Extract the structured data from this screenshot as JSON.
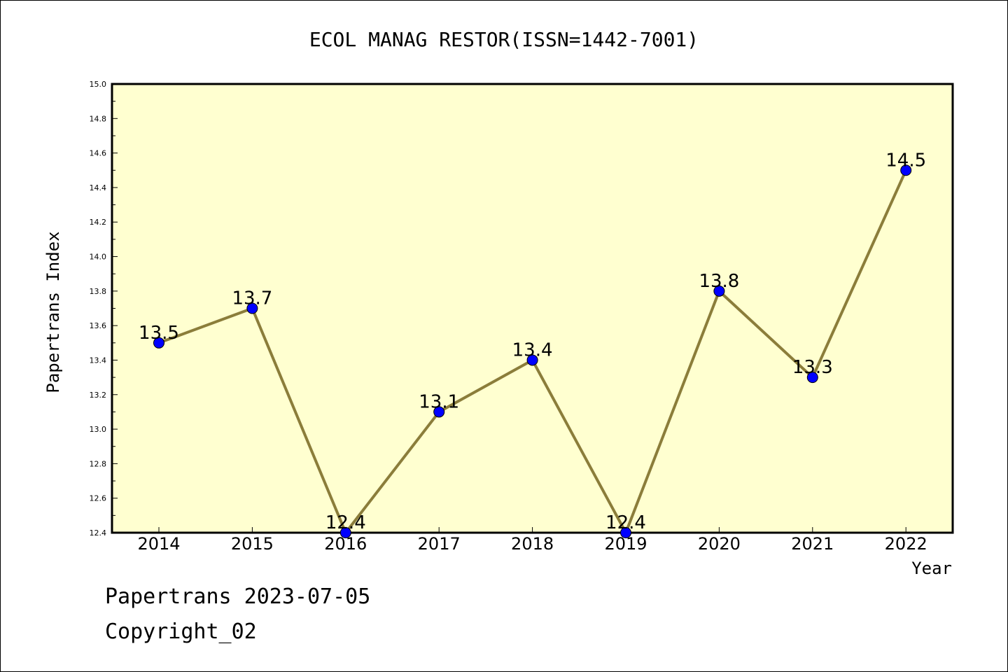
{
  "chart_data": {
    "type": "line",
    "title": "ECOL MANAG RESTOR(ISSN=1442-7001)",
    "xlabel": "Year",
    "ylabel": "Papertrans Index",
    "categories": [
      "2014",
      "2015",
      "2016",
      "2017",
      "2018",
      "2019",
      "2020",
      "2021",
      "2022"
    ],
    "values": [
      13.5,
      13.7,
      12.4,
      13.1,
      13.4,
      12.4,
      13.8,
      13.3,
      14.5
    ],
    "data_labels": [
      "13.5",
      "13.7",
      "12.4",
      "13.1",
      "13.4",
      "12.4",
      "13.8",
      "13.3",
      "14.5"
    ],
    "ylim": [
      12.4,
      15.0
    ],
    "yticks": [
      "12.4",
      "12.6",
      "12.8",
      "13.0",
      "13.2",
      "13.4",
      "13.6",
      "13.8",
      "14.0",
      "14.2",
      "14.4",
      "14.6",
      "14.8",
      "15.0"
    ],
    "grid": false,
    "legend": "none",
    "colors": {
      "plot_background": "#ffffd0",
      "line": "#8b7d3a",
      "marker": "#0000ff",
      "marker_edge": "#000000"
    }
  },
  "footer": {
    "date_text": "Papertrans 2023-07-05",
    "copyright_text": "Copyright_02"
  }
}
